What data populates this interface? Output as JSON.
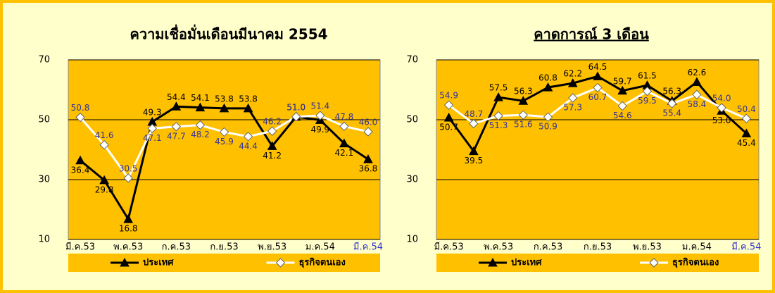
{
  "chart_data": [
    {
      "type": "line",
      "title": "ความเชื่อมั่นเดือนมีนาคม 2554",
      "categories": [
        "มี.ค.53",
        null,
        "พ.ค.53",
        null,
        "ก.ค.53",
        null,
        "ก.ย.53",
        null,
        "พ.ย.53",
        null,
        "ม.ค.54",
        null,
        "มี.ค.54"
      ],
      "ylim": [
        10,
        70
      ],
      "yticks": [
        10,
        30,
        50,
        70
      ],
      "grid": true,
      "legend": "bottom",
      "plot_color": "#FFC000",
      "series": [
        {
          "name": "ประเทศ",
          "color": "#000000",
          "marker": "triangle",
          "label_color": "#000000",
          "values": [
            36.4,
            29.8,
            16.8,
            49.3,
            54.4,
            54.1,
            53.8,
            53.8,
            41.2,
            51.0,
            49.9,
            42.1,
            36.8
          ],
          "value_labels": [
            "36.4",
            "29.8",
            "16.8",
            "49.3",
            "54.4",
            "54.1",
            "53.8",
            "53.8",
            "41.2",
            "51.0",
            "49.9",
            "42.1",
            "36.8"
          ]
        },
        {
          "name": "ธุรกิจตนเอง",
          "color": "#ffffff",
          "marker": "diamond",
          "label_color": "#333399",
          "values": [
            50.8,
            41.6,
            30.5,
            47.1,
            47.7,
            48.2,
            45.9,
            44.4,
            46.2,
            51.0,
            51.4,
            47.8,
            46.0
          ],
          "value_labels": [
            "50.8",
            "41.6",
            "30.5",
            "47.1",
            "47.7",
            "48.2",
            "45.9",
            "44.4",
            "46.2",
            "51.0",
            "51.4",
            "47.8",
            "46.0"
          ]
        }
      ]
    },
    {
      "type": "line",
      "title": "คาดการณ์ 3 เดือน",
      "categories": [
        "มี.ค.53",
        null,
        "พ.ค.53",
        null,
        "ก.ค.53",
        null,
        "ก.ย.53",
        null,
        "พ.ย.53",
        null,
        "ม.ค.54",
        null,
        "มี.ค.54"
      ],
      "ylim": [
        10,
        70
      ],
      "yticks": [
        10,
        30,
        50,
        70
      ],
      "grid": true,
      "legend": "bottom",
      "plot_color": "#FFC000",
      "series": [
        {
          "name": "ประเทศ",
          "color": "#000000",
          "marker": "triangle",
          "label_color": "#000000",
          "values": [
            50.7,
            39.5,
            57.5,
            56.3,
            60.8,
            62.2,
            64.5,
            59.7,
            61.5,
            56.3,
            62.6,
            53.0,
            45.4
          ],
          "value_labels": [
            "50.7",
            "39.5",
            "57.5",
            "56.3",
            "60.8",
            "62.2",
            "64.5",
            "59.7",
            "61.5",
            "56.3",
            "62.6",
            "53.0",
            "45.4"
          ]
        },
        {
          "name": "ธุรกิจตนเอง",
          "color": "#ffffff",
          "marker": "diamond",
          "label_color": "#333399",
          "values": [
            54.9,
            48.7,
            51.3,
            51.6,
            50.9,
            57.3,
            60.7,
            54.6,
            59.5,
            55.4,
            58.4,
            54.0,
            50.4
          ],
          "value_labels": [
            "54.9",
            "48.7",
            "51.3",
            "51.6",
            "50.9",
            "57.3",
            "60.7",
            "54.6",
            "59.5",
            "55.4",
            "58.4",
            "54.0",
            "50.4"
          ]
        }
      ]
    }
  ]
}
